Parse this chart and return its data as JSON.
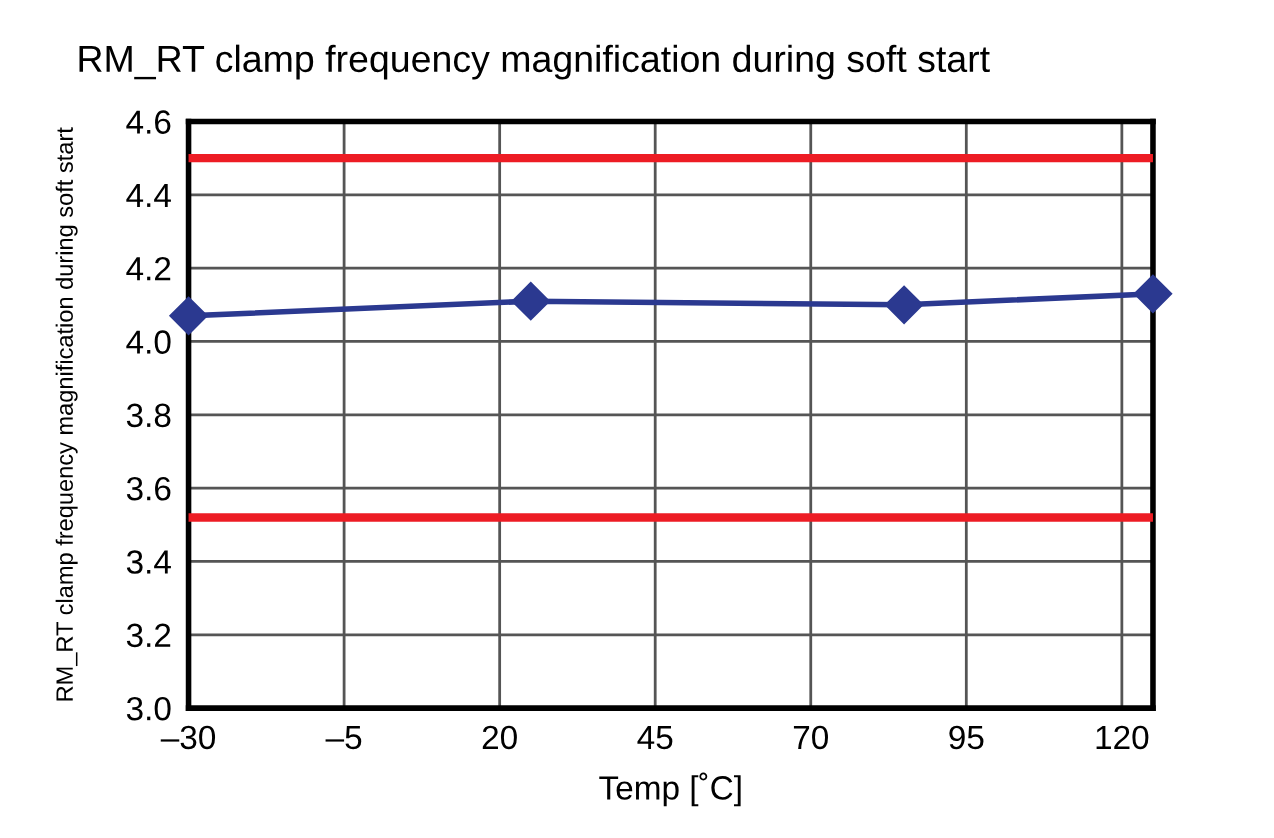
{
  "chart_data": {
    "type": "line",
    "title": "RM_RT clamp frequency magnification during soft start",
    "xlabel": "Temp [˚C]",
    "ylabel": "RM_RT clamp frequency magnification during soft start",
    "x": [
      -30,
      25,
      85,
      125
    ],
    "series": [
      {
        "color": "#2b3990",
        "values": [
          4.07,
          4.11,
          4.1,
          4.13
        ]
      }
    ],
    "xlim": [
      -30,
      125
    ],
    "xticks": [
      {
        "value": -30,
        "label": "–30"
      },
      {
        "value": -5,
        "label": "–5"
      },
      20,
      45,
      70,
      95,
      120
    ],
    "ylim": [
      3.0,
      4.6
    ],
    "yticks": [
      {
        "value": 3.0,
        "label": "3.0"
      },
      3.2,
      3.4,
      3.6,
      3.8,
      {
        "value": 4.0,
        "label": "4.0"
      },
      4.2,
      4.4,
      4.6
    ],
    "ref_lines": [
      {
        "axis": "y",
        "value": 4.5,
        "color": "#ed1c24"
      },
      {
        "axis": "y",
        "value": 3.52,
        "color": "#ed1c24"
      }
    ],
    "grid": true,
    "marker": "diamond",
    "line_style": "solid",
    "legend": false
  }
}
